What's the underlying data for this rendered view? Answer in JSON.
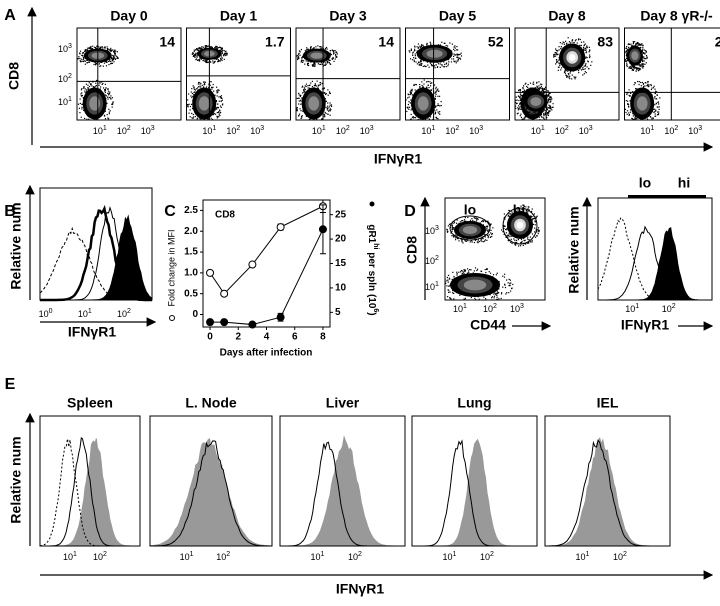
{
  "panels": {
    "A": {
      "label": "A",
      "ylabel": "CD8",
      "xlabel": "IFNγR1",
      "tick_base": "10",
      "tick_exps": [
        "1",
        "2",
        "3"
      ],
      "plots": [
        {
          "title": "Day 0",
          "value": 14
        },
        {
          "title": "Day 1",
          "value": 1.7
        },
        {
          "title": "Day 3",
          "value": 14
        },
        {
          "title": "Day 5",
          "value": 52
        },
        {
          "title": "Day 8",
          "value": 83
        },
        {
          "title": "Day 8 γR-/-",
          "value": 2
        }
      ]
    },
    "B": {
      "label": "B",
      "ylabel": "Relative num",
      "xlabel": "IFNγR1",
      "tick_base": "10",
      "tick_exps": [
        "0",
        "1",
        "2"
      ]
    },
    "C": {
      "label": "C"
    },
    "D": {
      "label": "D",
      "left": {
        "xlabel": "CD44",
        "ylabel": "CD8",
        "gates": [
          "lo",
          "hi"
        ],
        "tick_base": "10",
        "tick_exps": [
          "1",
          "2",
          "3"
        ]
      },
      "right": {
        "ylabel": "Relative num",
        "xlabel": "IFNγR1",
        "bars": [
          "lo",
          "hi"
        ],
        "tick_base": "10",
        "tick_exps": [
          "1",
          "2"
        ]
      }
    },
    "E": {
      "label": "E",
      "titles": [
        "Spleen",
        "L. Node",
        "Liver",
        "Lung",
        "IEL"
      ],
      "ylabel": "Relative num",
      "xlabel": "IFNγR1",
      "tick_base": "10",
      "tick_exps": [
        "1",
        "2"
      ]
    }
  },
  "chart_data": {
    "type": "line",
    "title": "CD8",
    "x": [
      0,
      1,
      3,
      5,
      8
    ],
    "xlim": [
      -0.5,
      8.5
    ],
    "xticks": [
      0,
      2,
      4,
      6,
      8
    ],
    "xlabel": "Days after infection",
    "ylabel": "Fold change in MFI",
    "y2label_parts": [
      "gR1",
      "hi",
      " per spln (10",
      "6",
      ")"
    ],
    "ylim": [
      -0.3,
      2.75
    ],
    "yticks": [
      0,
      0.5,
      {
        "value": 1,
        "label": "1.0"
      },
      1.5,
      {
        "value": 2,
        "label": "2.0"
      },
      2.5
    ],
    "y2lim": [
      2,
      28
    ],
    "y2ticks": [
      5,
      10,
      15,
      20,
      25
    ],
    "series": [
      {
        "color": "#000000",
        "marker": "open",
        "values": [
          1.0,
          0.5,
          1.2,
          2.1,
          2.6
        ],
        "errors": [
          0,
          0,
          0,
          0.07,
          0.15
        ]
      },
      {
        "color": "#000000",
        "marker": "filled",
        "axis": "y2",
        "values": [
          3,
          3,
          2.5,
          4,
          22
        ],
        "errors": [
          0,
          0,
          0,
          0.8,
          5
        ]
      }
    ]
  }
}
